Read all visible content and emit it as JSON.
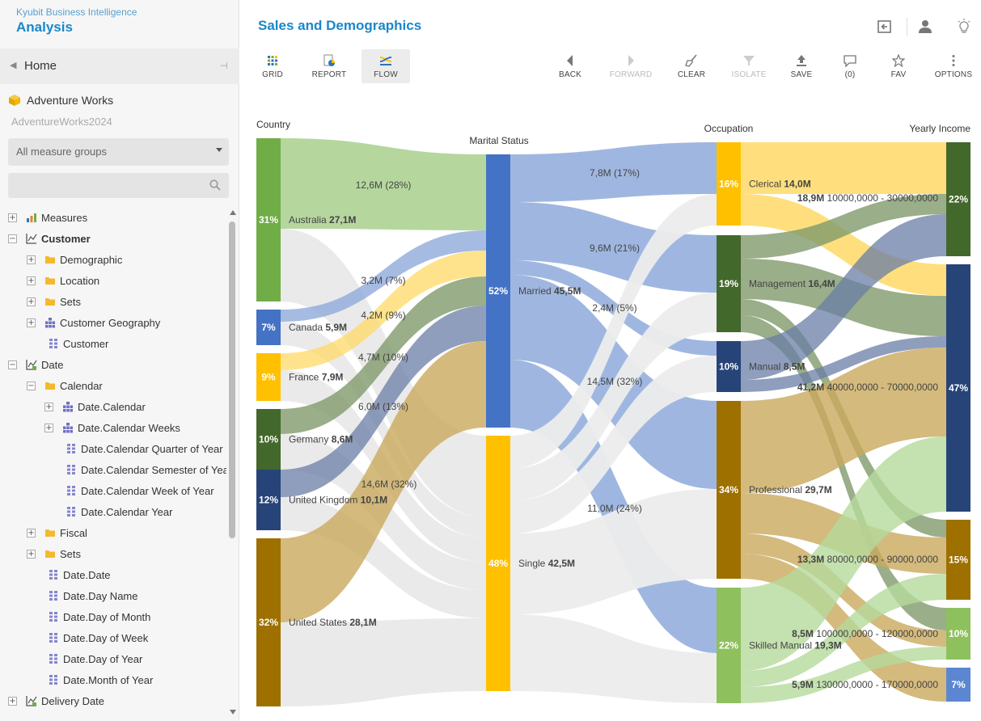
{
  "app": {
    "brand_sub": "Kyubit Business Intelligence",
    "brand_title": "Analysis",
    "page_title": "Sales and Demographics"
  },
  "sidebar": {
    "home_label": "Home",
    "cube_name": "Adventure Works",
    "database": "AdventureWorks2024",
    "measure_group": "All measure groups",
    "search_placeholder": "",
    "tree": [
      {
        "label": "Measures",
        "exp": "+",
        "icon": "bar",
        "level": 0,
        "bold": false
      },
      {
        "label": "Customer",
        "exp": "−",
        "icon": "dim",
        "level": 0,
        "bold": true
      },
      {
        "label": "Demographic",
        "exp": "+",
        "icon": "folder",
        "level": 1,
        "bold": false
      },
      {
        "label": "Location",
        "exp": "+",
        "icon": "folder",
        "level": 1,
        "bold": false
      },
      {
        "label": "Sets",
        "exp": "+",
        "icon": "folder",
        "level": 1,
        "bold": false
      },
      {
        "label": "Customer Geography",
        "exp": "+",
        "icon": "hier",
        "level": 1,
        "bold": false
      },
      {
        "label": "Customer",
        "exp": "",
        "icon": "grid",
        "level": 1,
        "bold": false
      },
      {
        "label": "Date",
        "exp": "−",
        "icon": "dimdate",
        "level": 0,
        "bold": false
      },
      {
        "label": "Calendar",
        "exp": "−",
        "icon": "folder",
        "level": 1,
        "bold": false
      },
      {
        "label": "Date.Calendar",
        "exp": "+",
        "icon": "hier",
        "level": 2,
        "bold": false
      },
      {
        "label": "Date.Calendar Weeks",
        "exp": "+",
        "icon": "hier",
        "level": 2,
        "bold": false
      },
      {
        "label": "Date.Calendar Quarter of Year",
        "exp": "",
        "icon": "grid",
        "level": 2,
        "bold": false
      },
      {
        "label": "Date.Calendar Semester of Year",
        "exp": "",
        "icon": "grid",
        "level": 2,
        "bold": false
      },
      {
        "label": "Date.Calendar Week of Year",
        "exp": "",
        "icon": "grid",
        "level": 2,
        "bold": false
      },
      {
        "label": "Date.Calendar Year",
        "exp": "",
        "icon": "grid",
        "level": 2,
        "bold": false
      },
      {
        "label": "Fiscal",
        "exp": "+",
        "icon": "folder",
        "level": 1,
        "bold": false
      },
      {
        "label": "Sets",
        "exp": "+",
        "icon": "folder",
        "level": 1,
        "bold": false
      },
      {
        "label": "Date.Date",
        "exp": "",
        "icon": "grid",
        "level": 1,
        "bold": false
      },
      {
        "label": "Date.Day Name",
        "exp": "",
        "icon": "grid",
        "level": 1,
        "bold": false
      },
      {
        "label": "Date.Day of Month",
        "exp": "",
        "icon": "grid",
        "level": 1,
        "bold": false
      },
      {
        "label": "Date.Day of Week",
        "exp": "",
        "icon": "grid",
        "level": 1,
        "bold": false
      },
      {
        "label": "Date.Day of Year",
        "exp": "",
        "icon": "grid",
        "level": 1,
        "bold": false
      },
      {
        "label": "Date.Month of Year",
        "exp": "",
        "icon": "grid",
        "level": 1,
        "bold": false
      },
      {
        "label": "Delivery Date",
        "exp": "+",
        "icon": "dimdate",
        "level": 0,
        "bold": false
      }
    ]
  },
  "toolbar": {
    "grid": "GRID",
    "report": "REPORT",
    "flow": "FLOW",
    "back": "BACK",
    "forward": "FORWARD",
    "clear": "CLEAR",
    "isolate": "ISOLATE",
    "save": "SAVE",
    "comments": "(0)",
    "fav": "FAV",
    "options": "OPTIONS"
  },
  "colors": {
    "accent": "#1a87c9",
    "link_gray": "#ececec",
    "married": "#4472c4",
    "single": "#ffc000"
  },
  "chart_data": {
    "type": "sankey",
    "columns": [
      "Country",
      "Marital Status",
      "Occupation",
      "Yearly Income"
    ],
    "nodes": [
      {
        "id": "australia",
        "column": 0,
        "label": "Australia",
        "value": "27,1M",
        "pct": "31%",
        "color": "#70ad47"
      },
      {
        "id": "canada",
        "column": 0,
        "label": "Canada",
        "value": "5,9M",
        "pct": "7%",
        "color": "#4472c4"
      },
      {
        "id": "france",
        "column": 0,
        "label": "France",
        "value": "7,9M",
        "pct": "9%",
        "color": "#ffc000"
      },
      {
        "id": "germany",
        "column": 0,
        "label": "Germany",
        "value": "8,6M",
        "pct": "10%",
        "color": "#43682b"
      },
      {
        "id": "uk",
        "column": 0,
        "label": "United Kingdom",
        "value": "10,1M",
        "pct": "12%",
        "color": "#264478"
      },
      {
        "id": "us",
        "column": 0,
        "label": "United States",
        "value": "28,1M",
        "pct": "32%",
        "color": "#9e7000"
      },
      {
        "id": "married",
        "column": 1,
        "label": "Married",
        "value": "45,5M",
        "pct": "52%",
        "color": "#4472c4"
      },
      {
        "id": "single",
        "column": 1,
        "label": "Single",
        "value": "42,5M",
        "pct": "48%",
        "color": "#ffc000"
      },
      {
        "id": "clerical",
        "column": 2,
        "label": "Clerical",
        "value": "14,0M",
        "pct": "16%",
        "color": "#ffc000"
      },
      {
        "id": "management",
        "column": 2,
        "label": "Management",
        "value": "16,4M",
        "pct": "19%",
        "color": "#43682b"
      },
      {
        "id": "manual",
        "column": 2,
        "label": "Manual",
        "value": "8,5M",
        "pct": "10%",
        "color": "#264478"
      },
      {
        "id": "professional",
        "column": 2,
        "label": "Professional",
        "value": "29,7M",
        "pct": "34%",
        "color": "#9e7000"
      },
      {
        "id": "skilled",
        "column": 2,
        "label": "Skilled Manual",
        "value": "19,3M",
        "pct": "22%",
        "color": "#8fc05e"
      },
      {
        "id": "inc1",
        "column": 3,
        "label": "",
        "value": "",
        "pct": "22%",
        "color": "#43682b"
      },
      {
        "id": "inc2",
        "column": 3,
        "label": "",
        "value": "",
        "pct": "47%",
        "color": "#264478"
      },
      {
        "id": "inc3",
        "column": 3,
        "label": "",
        "value": "",
        "pct": "15%",
        "color": "#9e7000"
      },
      {
        "id": "inc4",
        "column": 3,
        "label": "",
        "value": "",
        "pct": "10%",
        "color": "#8fc05e"
      },
      {
        "id": "inc5",
        "column": 3,
        "label": "",
        "value": "",
        "pct": "7%",
        "color": "#5b87d2"
      }
    ],
    "flow_labels": [
      {
        "text": "12,6M (28%)"
      },
      {
        "text": "3,2M (7%)"
      },
      {
        "text": "4,2M (9%)"
      },
      {
        "text": "4,7M (10%)"
      },
      {
        "text": "6,0M (13%)"
      },
      {
        "text": "14,6M (32%)"
      },
      {
        "text": "7,8M (17%)"
      },
      {
        "text": "9,6M (21%)"
      },
      {
        "text": "2,4M (5%)"
      },
      {
        "text": "14,5M (32%)"
      },
      {
        "text": "11,0M (24%)"
      }
    ],
    "income_labels": [
      {
        "amount": "18,9M",
        "range": "10000,0000 - 30000,0000"
      },
      {
        "amount": "41,2M",
        "range": "40000,0000 - 70000,0000"
      },
      {
        "amount": "13,3M",
        "range": "80000,0000 - 90000,0000"
      },
      {
        "amount": "8,5M",
        "range": "100000,0000 - 120000,0000"
      },
      {
        "amount": "5,9M",
        "range": "130000,0000 - 170000,0000"
      }
    ]
  }
}
